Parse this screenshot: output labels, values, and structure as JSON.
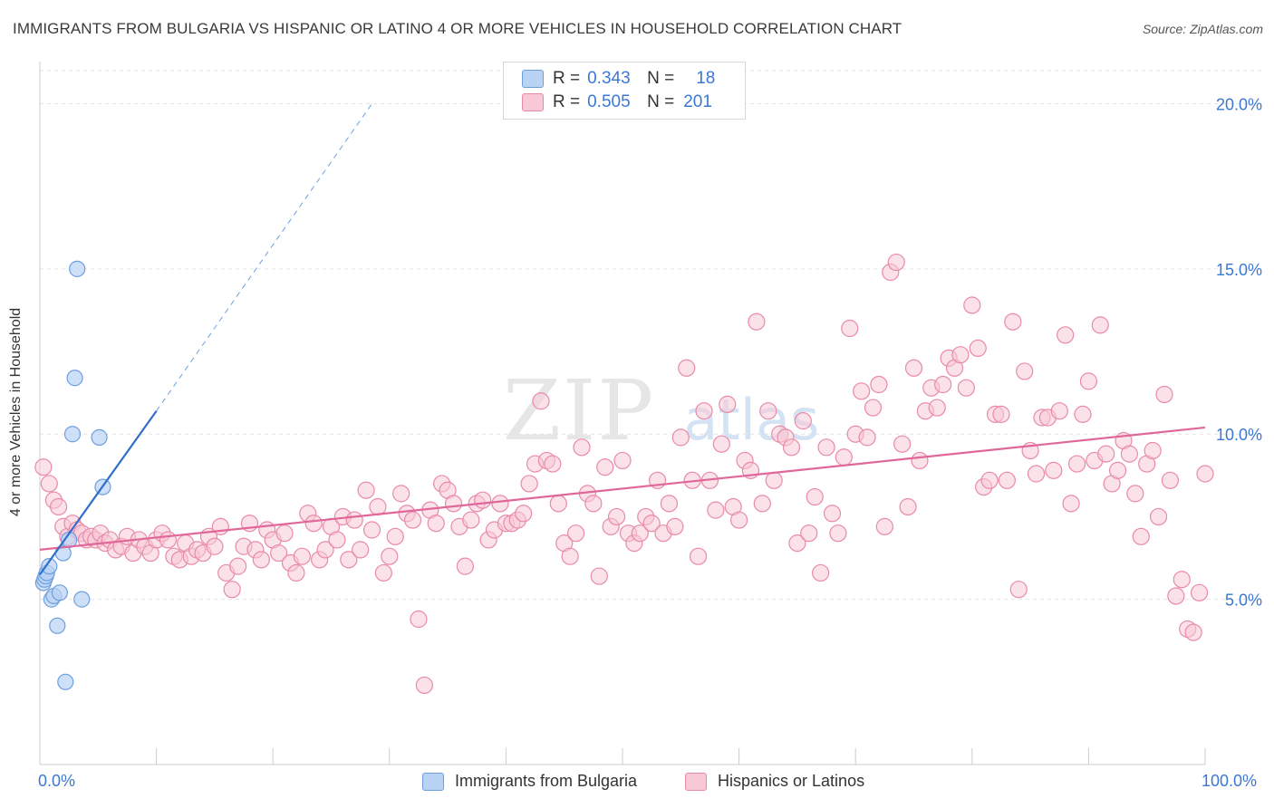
{
  "title": "IMMIGRANTS FROM BULGARIA VS HISPANIC OR LATINO 4 OR MORE VEHICLES IN HOUSEHOLD CORRELATION CHART",
  "source": "Source: ZipAtlas.com",
  "watermark": {
    "zip": "ZIP",
    "atlas": "atlas"
  },
  "legend": {
    "rows": [
      {
        "r_label": "R =",
        "r_value": "0.343",
        "n_label": "N =",
        "n_value": "18"
      },
      {
        "r_label": "R =",
        "r_value": "0.505",
        "n_label": "N =",
        "n_value": "201"
      }
    ]
  },
  "colors": {
    "blue_fill": "#b9d3f4",
    "blue_stroke": "#6d9fde",
    "blue_line": "#2f6fcc",
    "pink_fill": "#f8c8d6",
    "pink_stroke": "#e98aa8",
    "pink_line": "#e0679a",
    "grid": "#e3e3e3",
    "tick_label": "#3a78d4"
  },
  "chart_data": {
    "type": "scatter",
    "title": "IMMIGRANTS FROM BULGARIA VS HISPANIC OR LATINO 4 OR MORE VEHICLES IN HOUSEHOLD CORRELATION CHART",
    "xlabel": "",
    "ylabel": "4 or more Vehicles in Household",
    "xlim": [
      0,
      100
    ],
    "ylim": [
      0,
      21
    ],
    "x_tick_labels": [
      "0.0%",
      "100.0%"
    ],
    "y_ticks": [
      5,
      10,
      15,
      20
    ],
    "y_tick_labels": [
      "5.0%",
      "10.0%",
      "15.0%",
      "20.0%"
    ],
    "grid": true,
    "legend_position": "top-center",
    "series": [
      {
        "name": "Immigrants from Bulgaria",
        "color": "#b9d3f4",
        "trend": {
          "x": [
            0,
            10
          ],
          "y": [
            5.75,
            10.7
          ],
          "dashed_extension_to": [
            28.5,
            20.0
          ]
        },
        "points": [
          [
            0.3,
            5.5
          ],
          [
            0.4,
            5.6
          ],
          [
            0.5,
            5.7
          ],
          [
            0.6,
            5.8
          ],
          [
            0.8,
            6.0
          ],
          [
            1.0,
            5.0
          ],
          [
            1.2,
            5.1
          ],
          [
            1.5,
            4.2
          ],
          [
            1.7,
            5.2
          ],
          [
            2.0,
            6.4
          ],
          [
            2.2,
            2.5
          ],
          [
            2.5,
            6.8
          ],
          [
            2.8,
            10.0
          ],
          [
            3.0,
            11.7
          ],
          [
            3.2,
            15.0
          ],
          [
            3.6,
            5.0
          ],
          [
            5.1,
            9.9
          ],
          [
            5.4,
            8.4
          ]
        ]
      },
      {
        "name": "Hispanics or Latinos",
        "color": "#f8c8d6",
        "trend": {
          "x": [
            0,
            100
          ],
          "y": [
            6.5,
            10.2
          ]
        },
        "points": [
          [
            0.3,
            9.0
          ],
          [
            0.8,
            8.5
          ],
          [
            1.2,
            8.0
          ],
          [
            1.6,
            7.8
          ],
          [
            2.0,
            7.2
          ],
          [
            2.4,
            6.9
          ],
          [
            2.8,
            7.3
          ],
          [
            3.2,
            7.1
          ],
          [
            3.6,
            7.0
          ],
          [
            4.0,
            6.8
          ],
          [
            4.4,
            6.9
          ],
          [
            4.8,
            6.8
          ],
          [
            5.2,
            7.0
          ],
          [
            5.6,
            6.7
          ],
          [
            6.0,
            6.8
          ],
          [
            6.5,
            6.5
          ],
          [
            7.0,
            6.6
          ],
          [
            7.5,
            6.9
          ],
          [
            8.0,
            6.4
          ],
          [
            8.5,
            6.8
          ],
          [
            9.0,
            6.6
          ],
          [
            9.5,
            6.4
          ],
          [
            10.0,
            6.8
          ],
          [
            10.5,
            7.0
          ],
          [
            11.0,
            6.8
          ],
          [
            11.5,
            6.3
          ],
          [
            12.0,
            6.2
          ],
          [
            12.5,
            6.7
          ],
          [
            13.0,
            6.3
          ],
          [
            13.5,
            6.5
          ],
          [
            14.0,
            6.4
          ],
          [
            14.5,
            6.9
          ],
          [
            15.0,
            6.6
          ],
          [
            15.5,
            7.2
          ],
          [
            16.0,
            5.8
          ],
          [
            16.5,
            5.3
          ],
          [
            17.0,
            6.0
          ],
          [
            17.5,
            6.6
          ],
          [
            18.0,
            7.3
          ],
          [
            18.5,
            6.5
          ],
          [
            19.0,
            6.2
          ],
          [
            19.5,
            7.1
          ],
          [
            20.0,
            6.8
          ],
          [
            20.5,
            6.4
          ],
          [
            21.0,
            7.0
          ],
          [
            21.5,
            6.1
          ],
          [
            22.0,
            5.8
          ],
          [
            22.5,
            6.3
          ],
          [
            23.0,
            7.6
          ],
          [
            23.5,
            7.3
          ],
          [
            24.0,
            6.2
          ],
          [
            24.5,
            6.5
          ],
          [
            25.0,
            7.2
          ],
          [
            25.5,
            6.8
          ],
          [
            26.0,
            7.5
          ],
          [
            26.5,
            6.2
          ],
          [
            27.0,
            7.4
          ],
          [
            27.5,
            6.5
          ],
          [
            28.0,
            8.3
          ],
          [
            28.5,
            7.1
          ],
          [
            29.0,
            7.8
          ],
          [
            29.5,
            5.8
          ],
          [
            30.0,
            6.3
          ],
          [
            30.5,
            6.9
          ],
          [
            31.0,
            8.2
          ],
          [
            31.5,
            7.6
          ],
          [
            32.0,
            7.4
          ],
          [
            32.5,
            4.4
          ],
          [
            33.0,
            2.4
          ],
          [
            33.5,
            7.7
          ],
          [
            34.0,
            7.3
          ],
          [
            34.5,
            8.5
          ],
          [
            35.0,
            8.3
          ],
          [
            35.5,
            7.9
          ],
          [
            36.0,
            7.2
          ],
          [
            36.5,
            6.0
          ],
          [
            37.0,
            7.4
          ],
          [
            37.5,
            7.9
          ],
          [
            38.0,
            8.0
          ],
          [
            38.5,
            6.8
          ],
          [
            39.0,
            7.1
          ],
          [
            39.5,
            7.9
          ],
          [
            40.0,
            7.3
          ],
          [
            40.5,
            7.3
          ],
          [
            41.0,
            7.4
          ],
          [
            41.5,
            7.6
          ],
          [
            42.0,
            8.5
          ],
          [
            42.5,
            9.1
          ],
          [
            43.0,
            11.0
          ],
          [
            43.5,
            9.2
          ],
          [
            44.0,
            9.1
          ],
          [
            44.5,
            7.9
          ],
          [
            45.0,
            6.7
          ],
          [
            45.5,
            6.3
          ],
          [
            46.0,
            7.0
          ],
          [
            46.5,
            9.6
          ],
          [
            47.0,
            8.2
          ],
          [
            47.5,
            7.9
          ],
          [
            48.0,
            5.7
          ],
          [
            48.5,
            9.0
          ],
          [
            49.0,
            7.2
          ],
          [
            49.5,
            7.5
          ],
          [
            50.0,
            9.2
          ],
          [
            50.5,
            7.0
          ],
          [
            51.0,
            6.7
          ],
          [
            51.5,
            7.0
          ],
          [
            52.0,
            7.5
          ],
          [
            52.5,
            7.3
          ],
          [
            53.0,
            8.6
          ],
          [
            53.5,
            7.0
          ],
          [
            54.0,
            7.9
          ],
          [
            54.5,
            7.2
          ],
          [
            55.0,
            9.9
          ],
          [
            55.5,
            12.0
          ],
          [
            56.0,
            8.6
          ],
          [
            56.5,
            6.3
          ],
          [
            57.0,
            10.7
          ],
          [
            57.5,
            8.6
          ],
          [
            58.0,
            7.7
          ],
          [
            58.5,
            9.7
          ],
          [
            59.0,
            10.9
          ],
          [
            59.5,
            7.8
          ],
          [
            60.0,
            7.4
          ],
          [
            60.5,
            9.2
          ],
          [
            61.0,
            8.9
          ],
          [
            61.5,
            13.4
          ],
          [
            62.0,
            7.9
          ],
          [
            62.5,
            10.7
          ],
          [
            63.0,
            8.6
          ],
          [
            63.5,
            10.0
          ],
          [
            64.0,
            9.9
          ],
          [
            64.5,
            9.6
          ],
          [
            65.0,
            6.7
          ],
          [
            65.5,
            10.4
          ],
          [
            66.0,
            7.0
          ],
          [
            66.5,
            8.1
          ],
          [
            67.0,
            5.8
          ],
          [
            67.5,
            9.6
          ],
          [
            68.0,
            7.6
          ],
          [
            68.5,
            7.0
          ],
          [
            69.0,
            9.3
          ],
          [
            69.5,
            13.2
          ],
          [
            70.0,
            10.0
          ],
          [
            70.5,
            11.3
          ],
          [
            71.0,
            9.9
          ],
          [
            71.5,
            10.8
          ],
          [
            72.0,
            11.5
          ],
          [
            72.5,
            7.2
          ],
          [
            73.0,
            14.9
          ],
          [
            73.5,
            15.2
          ],
          [
            74.0,
            9.7
          ],
          [
            74.5,
            7.8
          ],
          [
            75.0,
            12.0
          ],
          [
            75.5,
            9.2
          ],
          [
            76.0,
            10.7
          ],
          [
            76.5,
            11.4
          ],
          [
            77.0,
            10.8
          ],
          [
            77.5,
            11.5
          ],
          [
            78.0,
            12.3
          ],
          [
            78.5,
            12.0
          ],
          [
            79.0,
            12.4
          ],
          [
            79.5,
            11.4
          ],
          [
            80.0,
            13.9
          ],
          [
            80.5,
            12.6
          ],
          [
            81.0,
            8.4
          ],
          [
            81.5,
            8.6
          ],
          [
            82.0,
            10.6
          ],
          [
            82.5,
            10.6
          ],
          [
            83.0,
            8.6
          ],
          [
            83.5,
            13.4
          ],
          [
            84.0,
            5.3
          ],
          [
            84.5,
            11.9
          ],
          [
            85.0,
            9.5
          ],
          [
            85.5,
            8.8
          ],
          [
            86.0,
            10.5
          ],
          [
            86.5,
            10.5
          ],
          [
            87.0,
            8.9
          ],
          [
            87.5,
            10.7
          ],
          [
            88.0,
            13.0
          ],
          [
            88.5,
            7.9
          ],
          [
            89.0,
            9.1
          ],
          [
            89.5,
            10.6
          ],
          [
            90.0,
            11.6
          ],
          [
            90.5,
            9.2
          ],
          [
            91.0,
            13.3
          ],
          [
            91.5,
            9.4
          ],
          [
            92.0,
            8.5
          ],
          [
            92.5,
            8.9
          ],
          [
            93.0,
            9.8
          ],
          [
            93.5,
            9.4
          ],
          [
            94.0,
            8.2
          ],
          [
            94.5,
            6.9
          ],
          [
            95.0,
            9.1
          ],
          [
            95.5,
            9.5
          ],
          [
            96.0,
            7.5
          ],
          [
            96.5,
            11.2
          ],
          [
            97.0,
            8.6
          ],
          [
            97.5,
            5.1
          ],
          [
            98.0,
            5.6
          ],
          [
            98.5,
            4.1
          ],
          [
            99.0,
            4.0
          ],
          [
            99.5,
            5.2
          ],
          [
            100.0,
            8.8
          ]
        ]
      }
    ]
  }
}
